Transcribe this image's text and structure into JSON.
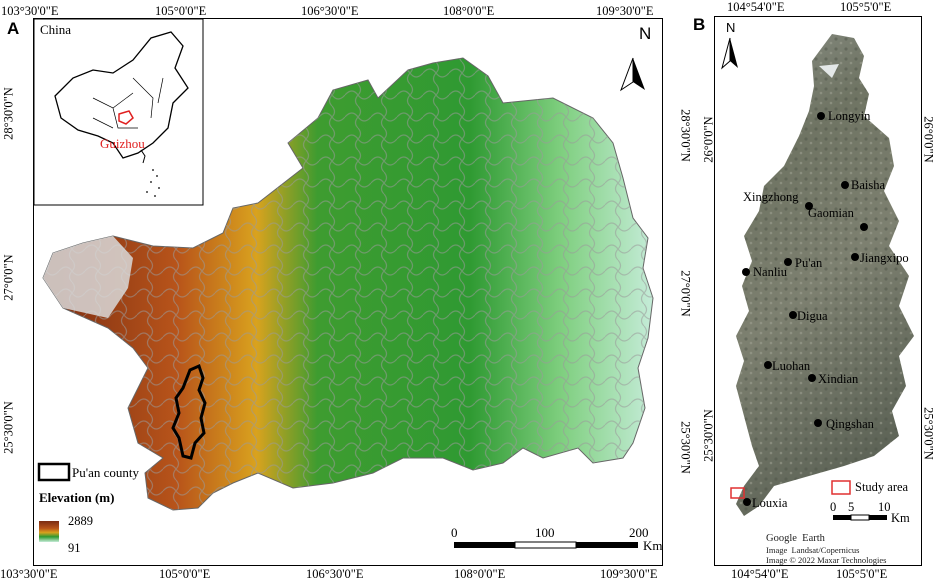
{
  "panel_a": {
    "letter": "A",
    "top_coords": [
      "103°30'0\"E",
      "105°0'0\"E",
      "106°30'0\"E",
      "108°0'0\"E",
      "109°30'0\"E"
    ],
    "bottom_coords": [
      "103°30'0\"E",
      "105°0'0\"E",
      "106°30'0\"E",
      "108°0'0\"E",
      "109°30'0\"E"
    ],
    "lat_coords": [
      "28°30'0\"N",
      "27°0'0\"N",
      "25°30'0\"N"
    ],
    "inset": {
      "country_label": "China",
      "province_label": "Guizhou"
    },
    "north_label": "N",
    "legend": {
      "county_label": "Pu'an county",
      "elevation_title": "Elevation (m)",
      "max_value": "2889",
      "min_value": "91"
    },
    "scale": {
      "ticks": [
        "0",
        "100",
        "200"
      ],
      "unit": "Km"
    }
  },
  "panel_b": {
    "letter": "B",
    "top_coords": [
      "104°54'0\"E",
      "105°5'0\"E"
    ],
    "bottom_coords": [
      "104°54'0\"E",
      "105°5'0\"E"
    ],
    "lat_coords": [
      "26°0'0\"N",
      "25°30'0\"N"
    ],
    "north_label": "N",
    "towns": [
      {
        "name": "Longyin"
      },
      {
        "name": "Baisha"
      },
      {
        "name": "Xingzhong"
      },
      {
        "name": "Gaomian"
      },
      {
        "name": "Jiangxipo"
      },
      {
        "name": "Pu'an"
      },
      {
        "name": "Nanliu"
      },
      {
        "name": "Digua"
      },
      {
        "name": "Luohan"
      },
      {
        "name": "Xindian"
      },
      {
        "name": "Qingshan"
      },
      {
        "name": "Louxia"
      }
    ],
    "legend": {
      "study_area_label": "Study area"
    },
    "scale": {
      "ticks": [
        "0",
        "5",
        "10"
      ],
      "unit": "Km"
    },
    "credits": [
      "Google  Earth",
      "Image  Landsat/Copernicus",
      "Image © 2022 Maxar Technologies"
    ]
  },
  "colors": {
    "elevation_high": "#7a2c12",
    "elevation_mid": "#d9a21e",
    "elevation_green": "#2f9a32",
    "elevation_low": "#c5ecd8",
    "county_boundary": "#9a9a9a",
    "study_area": "#e03030",
    "province_label": "#e02020"
  },
  "icons": [
    "north-arrow-icon",
    "town-marker-icon"
  ]
}
